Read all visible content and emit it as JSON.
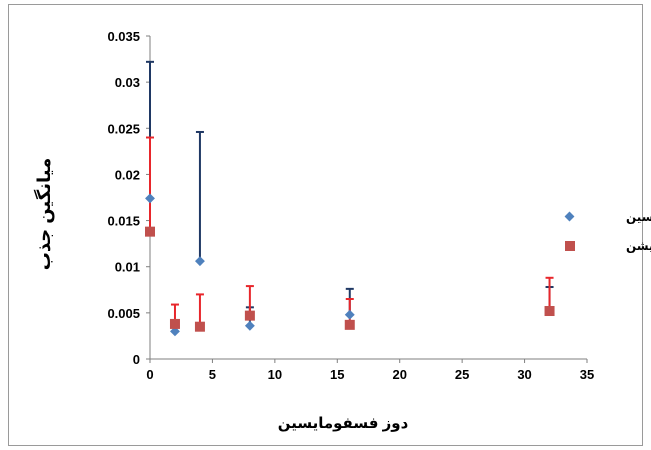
{
  "chart_data": {
    "type": "scatter",
    "title": "",
    "xlabel": "دوز فسفومایسین",
    "ylabel": "میانگین جذب",
    "xlim": [
      0,
      35
    ],
    "ylim": [
      0,
      0.035
    ],
    "x_ticks": [
      "0",
      "5",
      "10",
      "15",
      "20",
      "25",
      "30",
      "35"
    ],
    "y_ticks": [
      "0",
      "0.005",
      "0.01",
      "0.015",
      "0.02",
      "0.025",
      "0.03",
      "0.035"
    ],
    "grid": false,
    "legend_position": "right",
    "series": [
      {
        "name": "فسفومایسین",
        "marker": "diamond",
        "color": "#4f81bd",
        "error_color": "#1f3864",
        "points": [
          {
            "x": 0,
            "y": 0.0174,
            "err": 0.0148
          },
          {
            "x": 2,
            "y": 0.003,
            "err": 0.001
          },
          {
            "x": 4,
            "y": 0.0106,
            "err": 0.014
          },
          {
            "x": 8,
            "y": 0.0036,
            "err": 0.002
          },
          {
            "x": 16,
            "y": 0.0048,
            "err": 0.0028
          },
          {
            "x": 32,
            "y": 0.0052,
            "err": 0.0026
          }
        ]
      },
      {
        "name": "اویشن",
        "marker": "square",
        "color": "#c0504d",
        "error_color": "#e8262b",
        "points": [
          {
            "x": 0,
            "y": 0.0138,
            "err": 0.0102
          },
          {
            "x": 2,
            "y": 0.0038,
            "err": 0.0021
          },
          {
            "x": 4,
            "y": 0.0035,
            "err": 0.0035
          },
          {
            "x": 8,
            "y": 0.0047,
            "err": 0.0032
          },
          {
            "x": 16,
            "y": 0.0037,
            "err": 0.0028
          },
          {
            "x": 32,
            "y": 0.0052,
            "err": 0.0036
          }
        ]
      }
    ]
  }
}
